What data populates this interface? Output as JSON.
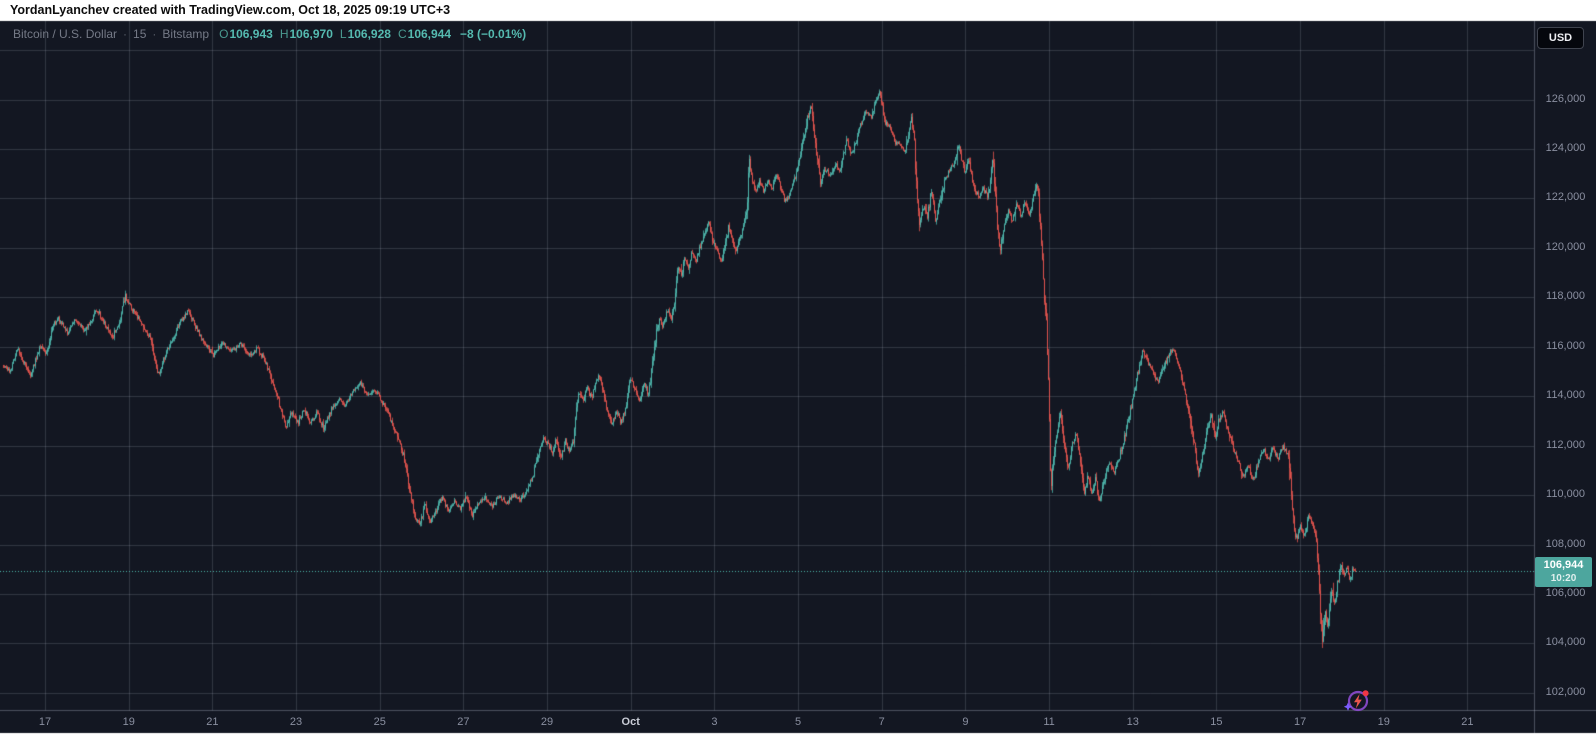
{
  "header": {
    "attribution": "YordanLyanchev created with TradingView.com, Oct 18, 2025 09:19 UTC+3"
  },
  "legend": {
    "instrument": "Bitcoin / U.S. Dollar",
    "separator": "·",
    "interval": "15",
    "exchange": "Bitstamp",
    "o_label": "O",
    "h_label": "H",
    "l_label": "L",
    "c_label": "C"
  },
  "price_axis": {
    "currency": "USD"
  },
  "price_badge": {
    "price": "106,944",
    "countdown": "10:20"
  },
  "icons": {
    "watermark": "lightning-circle-icon"
  },
  "colors": {
    "page_margin": "#ffffff",
    "background": "#131722",
    "grid": "rgba(170,176,195,0.21)",
    "axis_border": "rgba(170,176,195,0.38)",
    "up": "#4db6ac",
    "down": "#e2544e",
    "axis_text": "#8a8fa0",
    "month_text": "#c9ccd6",
    "badge_bg": "#4da69e",
    "dotted_line": "#4db6ac"
  },
  "chart_data": {
    "type": "candlestick",
    "title": "Bitcoin / U.S. Dollar · 15 · Bitstamp",
    "symbol": "BTCUSD",
    "interval_minutes": 15,
    "exchange": "Bitstamp",
    "ohlc": {
      "O": "106,943",
      "H": "106,970",
      "L": "106,928",
      "C": "106,944",
      "change": "−8 (−0.01%)"
    },
    "last_price": 106944,
    "countdown": "10:20",
    "legend_position": "top-left",
    "grid": true,
    "y_axis": {
      "side": "right",
      "ylim": [
        101300,
        129200
      ],
      "tick_step": 2000,
      "ticks": [
        {
          "label": "126,000",
          "value": 126000
        },
        {
          "label": "124,000",
          "value": 124000
        },
        {
          "label": "122,000",
          "value": 122000
        },
        {
          "label": "120,000",
          "value": 120000
        },
        {
          "label": "118,000",
          "value": 118000
        },
        {
          "label": "116,000",
          "value": 116000
        },
        {
          "label": "114,000",
          "value": 114000
        },
        {
          "label": "112,000",
          "value": 112000
        },
        {
          "label": "110,000",
          "value": 110000
        },
        {
          "label": "108,000",
          "value": 108000
        },
        {
          "label": "106,000",
          "value": 106000
        },
        {
          "label": "104,000",
          "value": 104000
        },
        {
          "label": "102,000",
          "value": 102000
        }
      ],
      "unlabeled_gridline_values": [
        128000
      ]
    },
    "x_axis": {
      "side": "bottom",
      "day0": "Sep 16",
      "labels": [
        {
          "text": "17",
          "day": 1
        },
        {
          "text": "19",
          "day": 3
        },
        {
          "text": "21",
          "day": 5
        },
        {
          "text": "23",
          "day": 7
        },
        {
          "text": "25",
          "day": 9
        },
        {
          "text": "27",
          "day": 11
        },
        {
          "text": "29",
          "day": 13
        },
        {
          "text": "Oct",
          "day": 15,
          "month": true
        },
        {
          "text": "3",
          "day": 17
        },
        {
          "text": "5",
          "day": 19
        },
        {
          "text": "7",
          "day": 21
        },
        {
          "text": "9",
          "day": 23
        },
        {
          "text": "11",
          "day": 25
        },
        {
          "text": "13",
          "day": 27
        },
        {
          "text": "15",
          "day": 29
        },
        {
          "text": "17",
          "day": 31
        },
        {
          "text": "19",
          "day": 33
        },
        {
          "text": "21",
          "day": 35
        }
      ]
    },
    "price_path": [
      [
        0.0,
        115250
      ],
      [
        0.16,
        115000
      ],
      [
        0.33,
        115950
      ],
      [
        0.5,
        115350
      ],
      [
        0.64,
        114800
      ],
      [
        0.88,
        116050
      ],
      [
        1.02,
        115700
      ],
      [
        1.21,
        116950
      ],
      [
        1.31,
        117150
      ],
      [
        1.53,
        116550
      ],
      [
        1.72,
        117100
      ],
      [
        1.96,
        116650
      ],
      [
        2.24,
        117500
      ],
      [
        2.43,
        116900
      ],
      [
        2.6,
        116350
      ],
      [
        2.79,
        117100
      ],
      [
        2.91,
        118050
      ],
      [
        3.1,
        117450
      ],
      [
        3.29,
        116950
      ],
      [
        3.51,
        116300
      ],
      [
        3.7,
        114850
      ],
      [
        3.89,
        115750
      ],
      [
        4.06,
        116350
      ],
      [
        4.25,
        117050
      ],
      [
        4.42,
        117450
      ],
      [
        4.61,
        116750
      ],
      [
        4.82,
        116100
      ],
      [
        5.02,
        115650
      ],
      [
        5.23,
        116150
      ],
      [
        5.45,
        115800
      ],
      [
        5.66,
        116100
      ],
      [
        5.9,
        115650
      ],
      [
        6.07,
        115950
      ],
      [
        6.23,
        115500
      ],
      [
        6.38,
        114850
      ],
      [
        6.52,
        114150
      ],
      [
        6.64,
        113400
      ],
      [
        6.76,
        112750
      ],
      [
        6.9,
        113400
      ],
      [
        7.05,
        112950
      ],
      [
        7.19,
        113500
      ],
      [
        7.33,
        112900
      ],
      [
        7.5,
        113350
      ],
      [
        7.65,
        112700
      ],
      [
        7.84,
        113450
      ],
      [
        8.0,
        113900
      ],
      [
        8.17,
        113550
      ],
      [
        8.36,
        114250
      ],
      [
        8.53,
        114550
      ],
      [
        8.7,
        114050
      ],
      [
        8.86,
        114300
      ],
      [
        9.03,
        113850
      ],
      [
        9.2,
        113300
      ],
      [
        9.34,
        112700
      ],
      [
        9.49,
        112100
      ],
      [
        9.61,
        111200
      ],
      [
        9.73,
        110000
      ],
      [
        9.85,
        109100
      ],
      [
        9.96,
        108850
      ],
      [
        10.08,
        109650
      ],
      [
        10.2,
        108900
      ],
      [
        10.35,
        109400
      ],
      [
        10.49,
        109900
      ],
      [
        10.63,
        109400
      ],
      [
        10.78,
        109750
      ],
      [
        10.92,
        109450
      ],
      [
        11.06,
        109900
      ],
      [
        11.21,
        109200
      ],
      [
        11.35,
        109650
      ],
      [
        11.52,
        109900
      ],
      [
        11.69,
        109550
      ],
      [
        11.85,
        110000
      ],
      [
        12.02,
        109650
      ],
      [
        12.19,
        110000
      ],
      [
        12.35,
        109800
      ],
      [
        12.52,
        110200
      ],
      [
        12.64,
        110700
      ],
      [
        12.78,
        111600
      ],
      [
        12.9,
        112350
      ],
      [
        13.02,
        112100
      ],
      [
        13.12,
        111700
      ],
      [
        13.22,
        112300
      ],
      [
        13.32,
        111500
      ],
      [
        13.44,
        112200
      ],
      [
        13.54,
        111750
      ],
      [
        13.62,
        112150
      ],
      [
        13.74,
        114280
      ],
      [
        13.85,
        113800
      ],
      [
        13.95,
        114400
      ],
      [
        14.05,
        113900
      ],
      [
        14.15,
        114500
      ],
      [
        14.22,
        114800
      ],
      [
        14.3,
        114500
      ],
      [
        14.42,
        113600
      ],
      [
        14.55,
        112800
      ],
      [
        14.65,
        113400
      ],
      [
        14.76,
        112950
      ],
      [
        14.88,
        113600
      ],
      [
        14.98,
        114760
      ],
      [
        15.1,
        114300
      ],
      [
        15.22,
        113800
      ],
      [
        15.32,
        114500
      ],
      [
        15.42,
        114050
      ],
      [
        15.52,
        115400
      ],
      [
        15.6,
        116500
      ],
      [
        15.68,
        117200
      ],
      [
        15.76,
        116850
      ],
      [
        15.86,
        117500
      ],
      [
        15.96,
        117100
      ],
      [
        16.04,
        117650
      ],
      [
        16.12,
        119300
      ],
      [
        16.21,
        118900
      ],
      [
        16.29,
        119600
      ],
      [
        16.37,
        119200
      ],
      [
        16.46,
        119800
      ],
      [
        16.56,
        119450
      ],
      [
        16.66,
        120100
      ],
      [
        16.76,
        120600
      ],
      [
        16.86,
        121000
      ],
      [
        16.96,
        120300
      ],
      [
        17.06,
        119800
      ],
      [
        17.16,
        119450
      ],
      [
        17.26,
        120200
      ],
      [
        17.33,
        120800
      ],
      [
        17.42,
        120300
      ],
      [
        17.52,
        119900
      ],
      [
        17.62,
        120500
      ],
      [
        17.72,
        121100
      ],
      [
        17.78,
        121800
      ],
      [
        17.83,
        123950
      ],
      [
        17.88,
        122800
      ],
      [
        17.97,
        122300
      ],
      [
        18.07,
        122700
      ],
      [
        18.17,
        122300
      ],
      [
        18.27,
        122800
      ],
      [
        18.37,
        122400
      ],
      [
        18.47,
        122900
      ],
      [
        18.57,
        122500
      ],
      [
        18.68,
        121900
      ],
      [
        18.8,
        122200
      ],
      [
        18.92,
        122800
      ],
      [
        19.03,
        123600
      ],
      [
        19.14,
        124600
      ],
      [
        19.24,
        125400
      ],
      [
        19.31,
        125750
      ],
      [
        19.38,
        124700
      ],
      [
        19.45,
        123600
      ],
      [
        19.53,
        122700
      ],
      [
        19.65,
        123200
      ],
      [
        19.77,
        122900
      ],
      [
        19.89,
        123400
      ],
      [
        20.01,
        123100
      ],
      [
        20.15,
        124400
      ],
      [
        20.27,
        123800
      ],
      [
        20.39,
        124300
      ],
      [
        20.51,
        125100
      ],
      [
        20.63,
        125500
      ],
      [
        20.75,
        125300
      ],
      [
        20.84,
        125900
      ],
      [
        20.94,
        126350
      ],
      [
        21.0,
        125800
      ],
      [
        21.08,
        125100
      ],
      [
        21.2,
        124900
      ],
      [
        21.32,
        124300
      ],
      [
        21.45,
        124100
      ],
      [
        21.56,
        123900
      ],
      [
        21.64,
        124700
      ],
      [
        21.7,
        125350
      ],
      [
        21.78,
        124300
      ],
      [
        21.84,
        121800
      ],
      [
        21.9,
        120900
      ],
      [
        22.0,
        121700
      ],
      [
        22.08,
        121200
      ],
      [
        22.18,
        122300
      ],
      [
        22.28,
        121100
      ],
      [
        22.4,
        122000
      ],
      [
        22.5,
        122700
      ],
      [
        22.63,
        123200
      ],
      [
        22.75,
        123500
      ],
      [
        22.82,
        124250
      ],
      [
        22.9,
        123500
      ],
      [
        23.0,
        123000
      ],
      [
        23.06,
        123650
      ],
      [
        23.14,
        122900
      ],
      [
        23.22,
        122300
      ],
      [
        23.32,
        122100
      ],
      [
        23.42,
        122400
      ],
      [
        23.52,
        122100
      ],
      [
        23.6,
        122700
      ],
      [
        23.64,
        123850
      ],
      [
        23.7,
        122400
      ],
      [
        23.77,
        120700
      ],
      [
        23.83,
        119950
      ],
      [
        23.92,
        120900
      ],
      [
        24.02,
        121500
      ],
      [
        24.12,
        121100
      ],
      [
        24.22,
        121700
      ],
      [
        24.32,
        121300
      ],
      [
        24.42,
        121900
      ],
      [
        24.52,
        121400
      ],
      [
        24.6,
        121800
      ],
      [
        24.67,
        122550
      ],
      [
        24.74,
        122250
      ],
      [
        24.8,
        120500
      ],
      [
        24.87,
        118300
      ],
      [
        24.93,
        117200
      ],
      [
        25.0,
        113500
      ],
      [
        25.04,
        110200
      ],
      [
        25.12,
        111800
      ],
      [
        25.19,
        112600
      ],
      [
        25.26,
        113300
      ],
      [
        25.36,
        112100
      ],
      [
        25.45,
        111100
      ],
      [
        25.55,
        112000
      ],
      [
        25.64,
        112550
      ],
      [
        25.74,
        111300
      ],
      [
        25.83,
        110100
      ],
      [
        25.93,
        110800
      ],
      [
        26.0,
        109950
      ],
      [
        26.1,
        110700
      ],
      [
        26.19,
        109750
      ],
      [
        26.31,
        110600
      ],
      [
        26.43,
        111300
      ],
      [
        26.55,
        110900
      ],
      [
        26.67,
        111500
      ],
      [
        26.79,
        112300
      ],
      [
        26.91,
        113200
      ],
      [
        27.03,
        114200
      ],
      [
        27.15,
        115200
      ],
      [
        27.24,
        115850
      ],
      [
        27.36,
        115350
      ],
      [
        27.48,
        115000
      ],
      [
        27.6,
        114550
      ],
      [
        27.72,
        115100
      ],
      [
        27.84,
        115600
      ],
      [
        27.96,
        115950
      ],
      [
        28.08,
        115300
      ],
      [
        28.2,
        114500
      ],
      [
        28.32,
        113500
      ],
      [
        28.44,
        112300
      ],
      [
        28.56,
        110900
      ],
      [
        28.65,
        111500
      ],
      [
        28.77,
        112600
      ],
      [
        28.87,
        113400
      ],
      [
        28.96,
        112200
      ],
      [
        29.06,
        113100
      ],
      [
        29.15,
        113350
      ],
      [
        29.27,
        112700
      ],
      [
        29.39,
        112000
      ],
      [
        29.51,
        111400
      ],
      [
        29.63,
        110700
      ],
      [
        29.75,
        111200
      ],
      [
        29.87,
        110600
      ],
      [
        29.99,
        111300
      ],
      [
        30.11,
        111900
      ],
      [
        30.23,
        111400
      ],
      [
        30.35,
        111900
      ],
      [
        30.47,
        111500
      ],
      [
        30.59,
        112000
      ],
      [
        30.71,
        111600
      ],
      [
        30.78,
        110300
      ],
      [
        30.85,
        108600
      ],
      [
        30.92,
        108200
      ],
      [
        31.0,
        108800
      ],
      [
        31.09,
        108300
      ],
      [
        31.19,
        109200
      ],
      [
        31.28,
        108900
      ],
      [
        31.38,
        108300
      ],
      [
        31.45,
        106500
      ],
      [
        31.52,
        104100
      ],
      [
        31.59,
        105300
      ],
      [
        31.66,
        104700
      ],
      [
        31.74,
        106200
      ],
      [
        31.81,
        105500
      ],
      [
        31.88,
        106300
      ],
      [
        31.97,
        107200
      ],
      [
        32.05,
        106700
      ],
      [
        32.12,
        107100
      ],
      [
        32.19,
        106600
      ],
      [
        32.26,
        107000
      ],
      [
        32.33,
        106944
      ]
    ]
  }
}
